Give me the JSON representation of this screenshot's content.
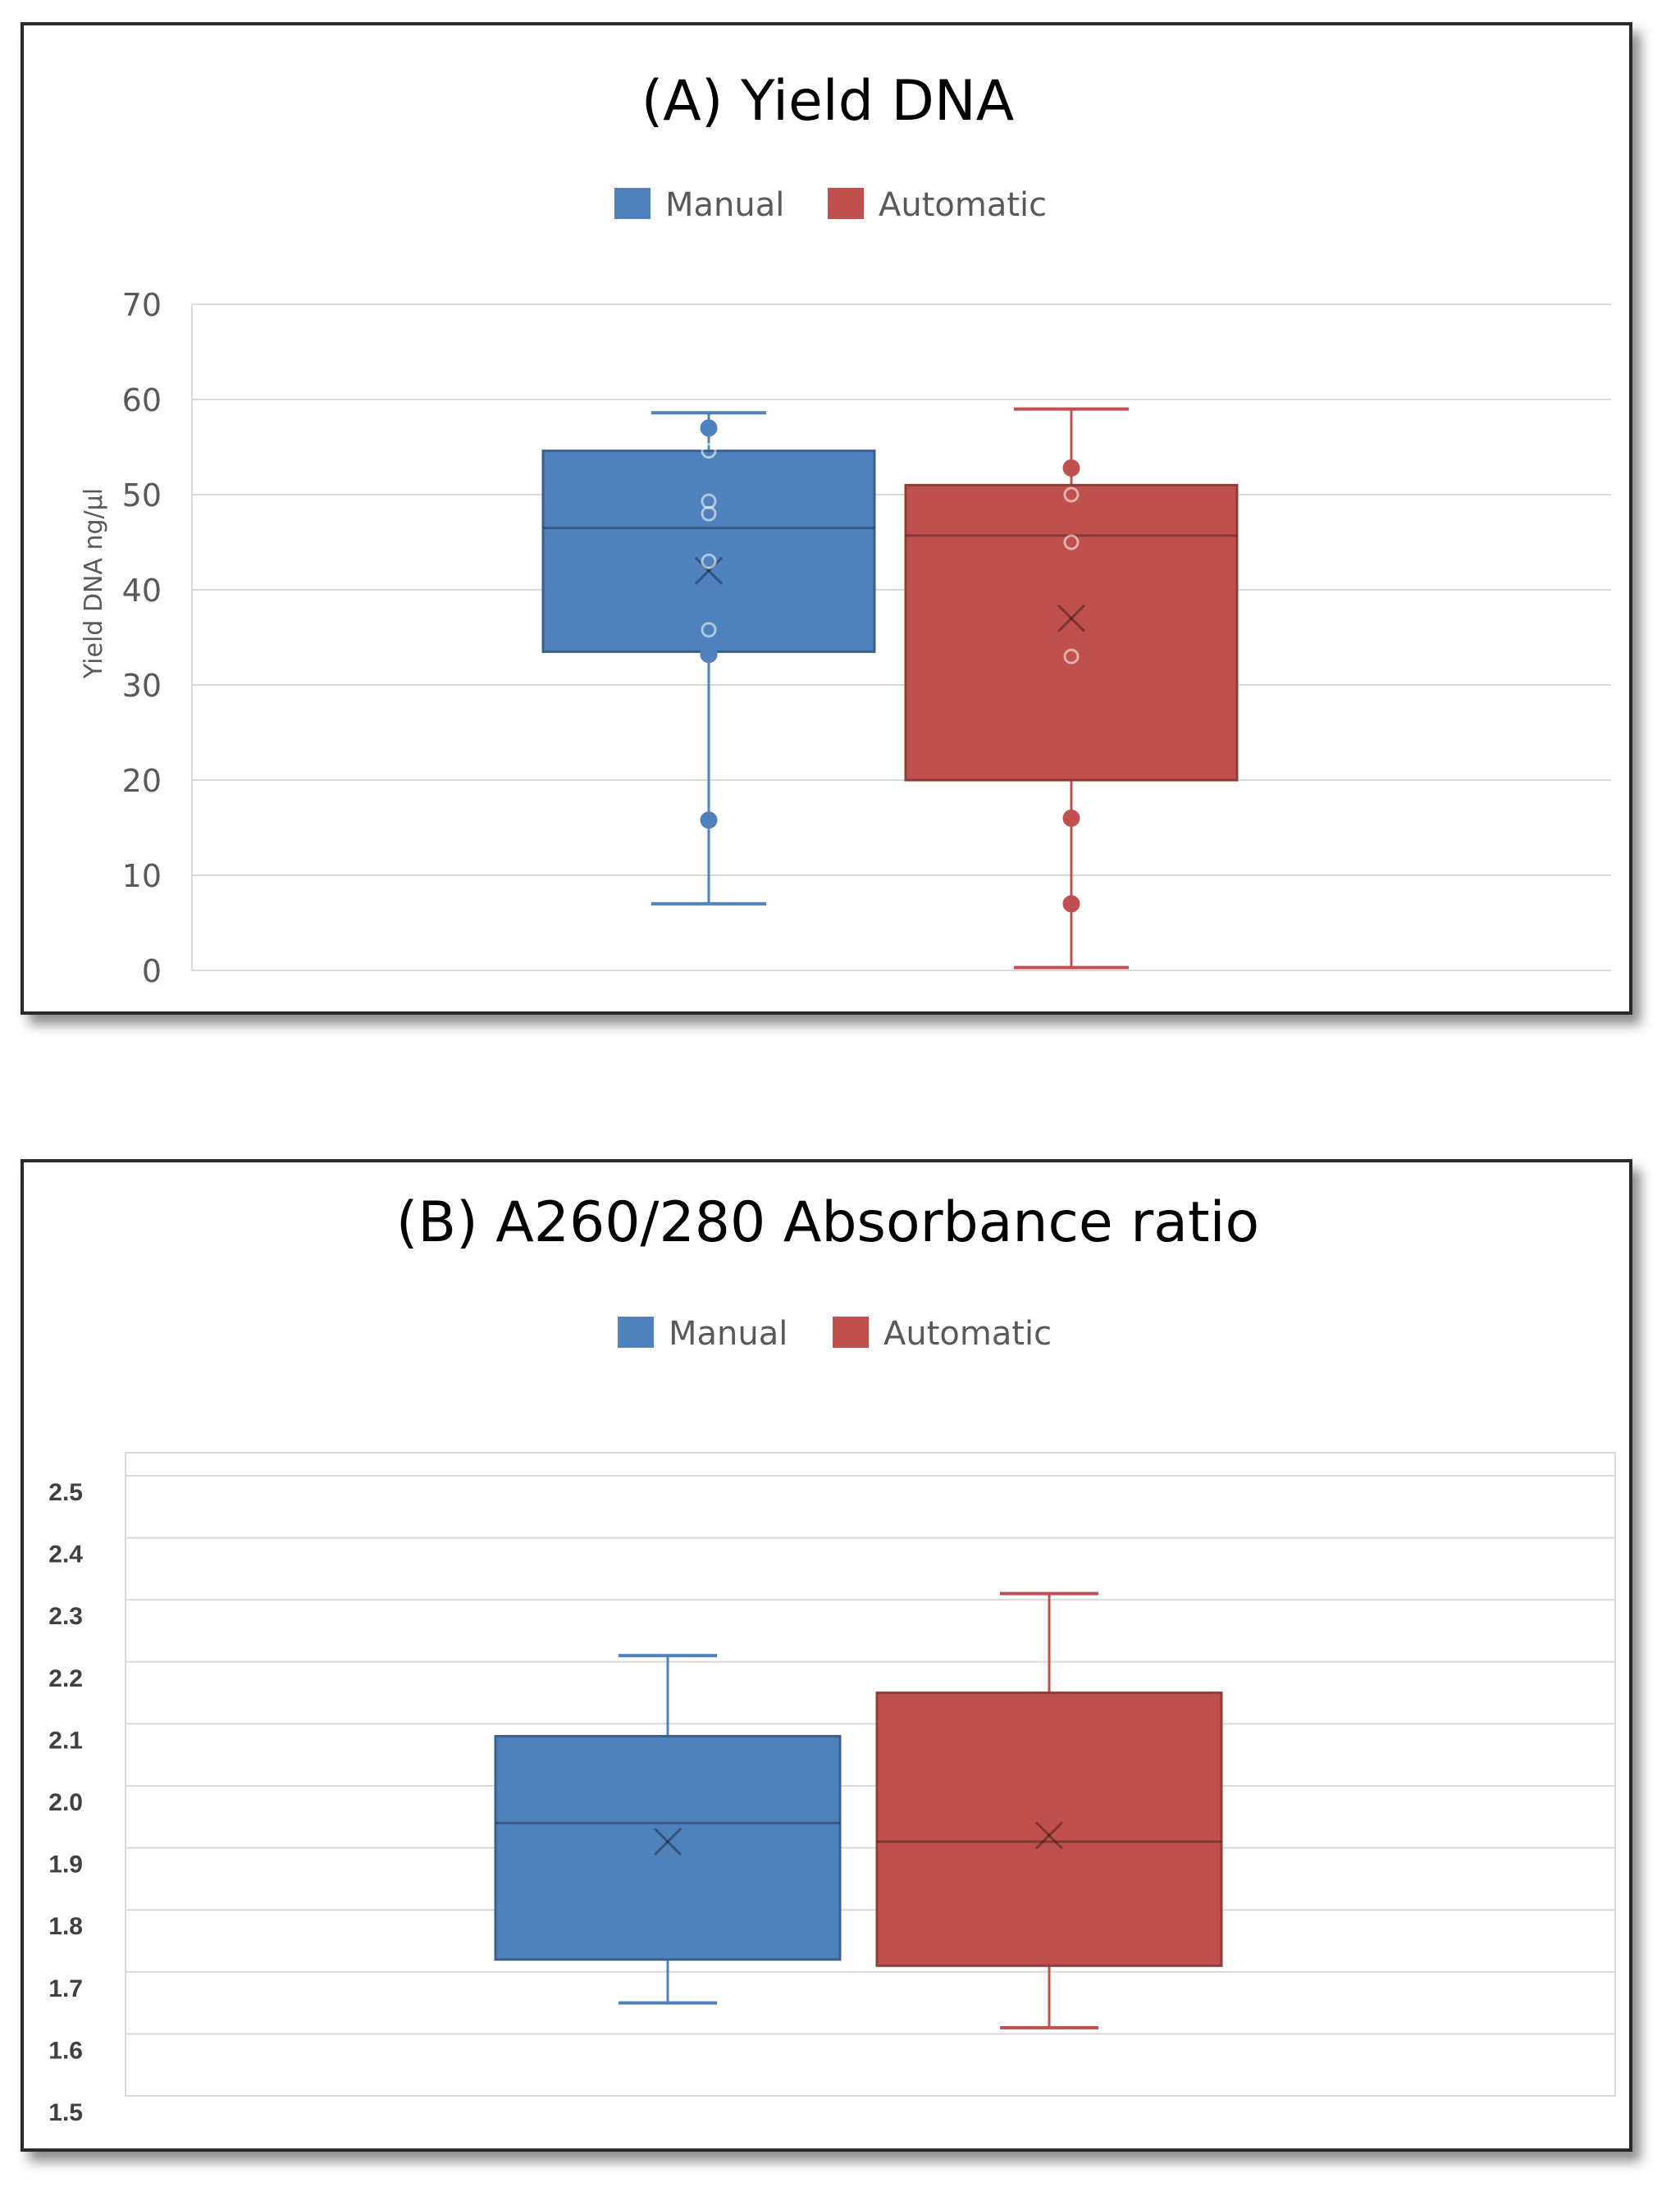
{
  "chart_data": [
    {
      "type": "box",
      "title": "(A) Yield DNA",
      "xlabel": "",
      "ylabel": "Yield DNA ng/µl",
      "ylim": [
        0,
        70
      ],
      "yticks": [
        0,
        10,
        20,
        30,
        40,
        50,
        60,
        70
      ],
      "grid": true,
      "legend": [
        "Manual",
        "Automatic"
      ],
      "legend_position": "top-center",
      "series": [
        {
          "name": "Manual",
          "color": "#4F81BD",
          "min": 7,
          "q1": 33.5,
          "median": 46.5,
          "q3": 54.6,
          "max": 58.6,
          "mean": 42,
          "points": [
            57,
            54.6,
            49.3,
            48,
            43,
            35.8,
            33.2,
            15.8
          ]
        },
        {
          "name": "Automatic",
          "color": "#C0504D",
          "min": 0.3,
          "q1": 20,
          "median": 45.7,
          "q3": 51,
          "max": 59,
          "mean": 37,
          "points": [
            52.8,
            50,
            45,
            33,
            16,
            7
          ]
        }
      ]
    },
    {
      "type": "box",
      "title": "(B) A260/280 Absorbance ratio",
      "xlabel": "",
      "ylabel": "",
      "ylim": [
        1.5,
        2.5
      ],
      "yticks": [
        1.5,
        1.6,
        1.7,
        1.8,
        1.9,
        2.0,
        2.1,
        2.2,
        2.3,
        2.4,
        2.5
      ],
      "grid": true,
      "legend": [
        "Manual",
        "Automatic"
      ],
      "legend_position": "top-center",
      "series": [
        {
          "name": "Manual",
          "color": "#4F81BD",
          "min": 1.65,
          "q1": 1.72,
          "median": 1.94,
          "q3": 2.08,
          "max": 2.21,
          "mean": 1.91,
          "points": []
        },
        {
          "name": "Automatic",
          "color": "#C0504D",
          "min": 1.61,
          "q1": 1.71,
          "median": 1.91,
          "q3": 2.15,
          "max": 2.31,
          "mean": 1.92,
          "points": []
        }
      ]
    }
  ]
}
